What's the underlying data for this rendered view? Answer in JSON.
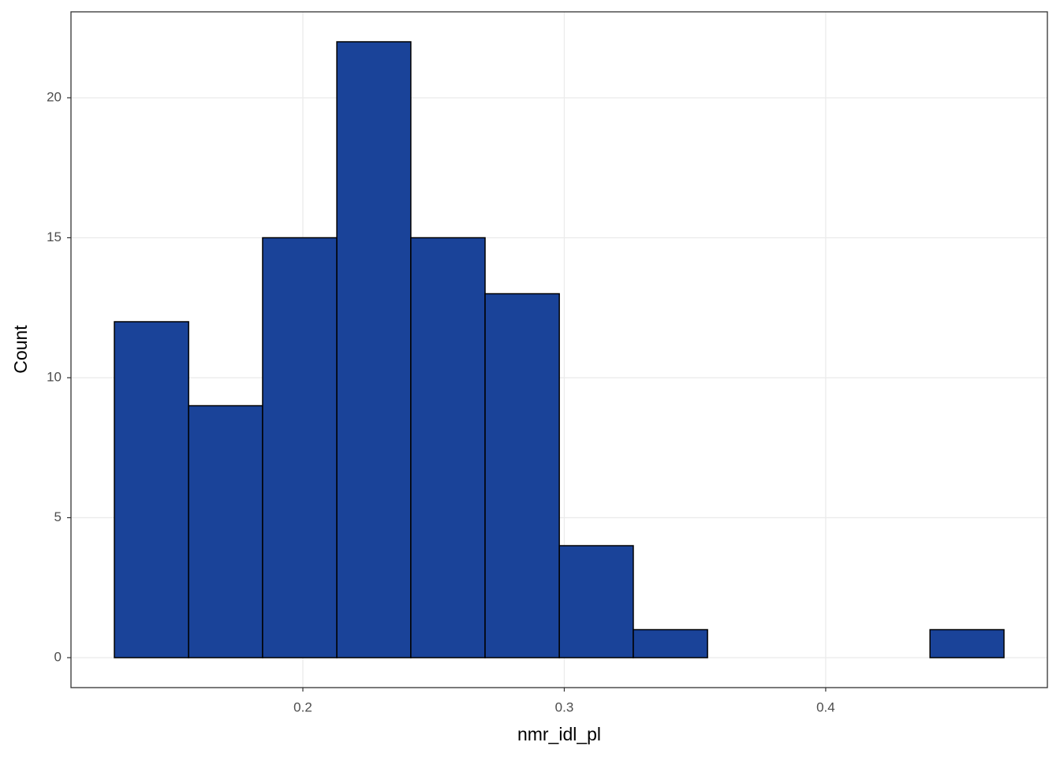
{
  "chart_data": {
    "type": "histogram",
    "x_label": "nmr_idl_pl",
    "y_label": "Count",
    "bins": [
      0.1279,
      0.1563,
      0.1846,
      0.213,
      0.2413,
      0.2697,
      0.2981,
      0.3264,
      0.3548,
      0.3831,
      0.4115,
      0.4399,
      0.4682
    ],
    "values": [
      12,
      9,
      15,
      22,
      15,
      13,
      4,
      1,
      0,
      0,
      0,
      1
    ],
    "color": "#1a4399",
    "xlim": [
      0.1113,
      0.4848
    ],
    "xticks": [
      0.2,
      0.3,
      0.4
    ],
    "ylim": [
      -1.07,
      23.07
    ],
    "yticks": [
      0,
      5,
      10,
      15,
      20
    ],
    "grid": true
  }
}
